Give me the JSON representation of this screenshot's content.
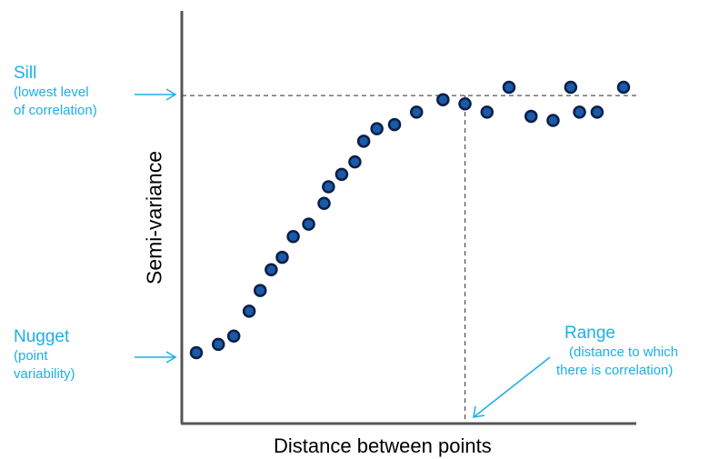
{
  "chart_data": {
    "type": "scatter",
    "title": "",
    "xlabel": "Distance between points",
    "ylabel": "Semi-variance",
    "xlim": [
      0,
      100
    ],
    "ylim": [
      0,
      100
    ],
    "grid": false,
    "points": [
      {
        "x": 3,
        "y": 17
      },
      {
        "x": 8,
        "y": 19
      },
      {
        "x": 11.5,
        "y": 21
      },
      {
        "x": 15,
        "y": 27
      },
      {
        "x": 17.5,
        "y": 32
      },
      {
        "x": 20,
        "y": 37
      },
      {
        "x": 22.5,
        "y": 40
      },
      {
        "x": 25,
        "y": 45
      },
      {
        "x": 28.5,
        "y": 48
      },
      {
        "x": 32,
        "y": 53
      },
      {
        "x": 33,
        "y": 57
      },
      {
        "x": 36,
        "y": 60
      },
      {
        "x": 39,
        "y": 63
      },
      {
        "x": 41,
        "y": 68
      },
      {
        "x": 44,
        "y": 71
      },
      {
        "x": 48,
        "y": 72
      },
      {
        "x": 53,
        "y": 75
      },
      {
        "x": 59,
        "y": 78
      },
      {
        "x": 64,
        "y": 77
      },
      {
        "x": 69,
        "y": 75
      },
      {
        "x": 74,
        "y": 81
      },
      {
        "x": 79,
        "y": 74
      },
      {
        "x": 84,
        "y": 73
      },
      {
        "x": 88,
        "y": 81
      },
      {
        "x": 90,
        "y": 75
      },
      {
        "x": 94,
        "y": 75
      },
      {
        "x": 100,
        "y": 81
      }
    ],
    "reference_lines": {
      "sill_y": 79,
      "range_x": 64
    },
    "annotations": [
      {
        "id": "sill",
        "title": "Sill",
        "detail": [
          "(lowest level",
          "of correlation)"
        ]
      },
      {
        "id": "nugget",
        "title": "Nugget",
        "detail": [
          "(point",
          "variability)"
        ]
      },
      {
        "id": "range",
        "title": "Range",
        "detail": [
          "(distance to which",
          "there is correlation)"
        ]
      }
    ],
    "colors": {
      "marker_fill": "#1a5aa6",
      "marker_stroke": "#0a1f48",
      "annotation": "#1ab0e6",
      "axis": "#555555",
      "reference_line": "#555555"
    }
  }
}
